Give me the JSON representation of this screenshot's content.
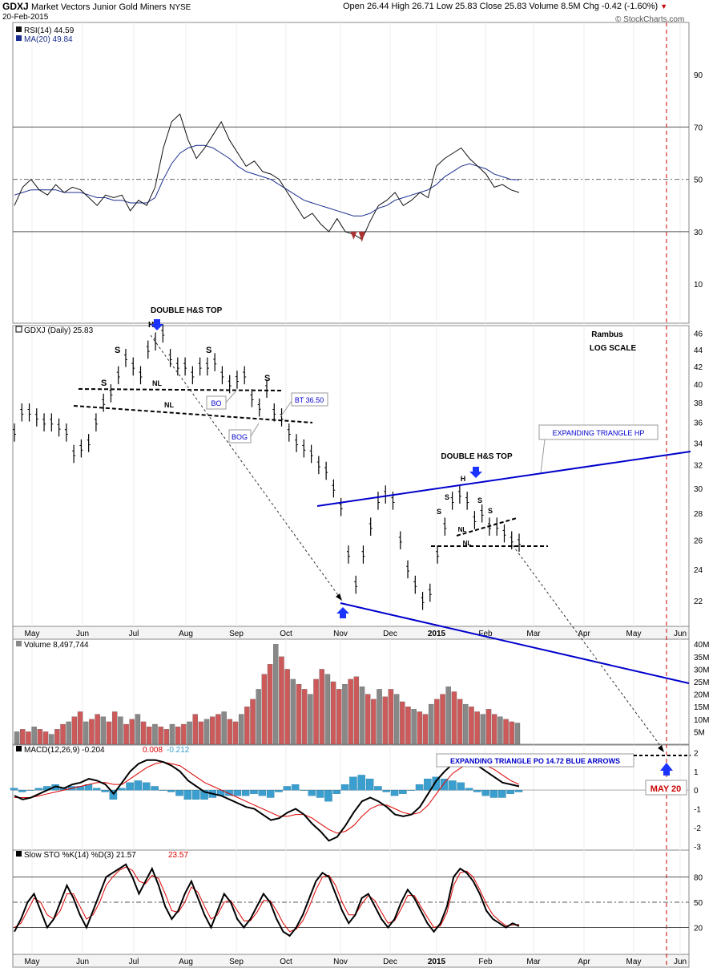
{
  "header": {
    "symbol": "GDXJ",
    "name": "Market Vectors Junior Gold Miners",
    "exchange": "NYSE",
    "date": "20-Feb-2015",
    "ohlc_line": "Open 26.44  High 26.71  Low 25.83  Close 25.83  Volume 8.5M  Chg -0.42 (-1.60%)",
    "watermark": "© StockCharts.com",
    "ohlc_down_icon": "down-triangle-icon"
  },
  "x_axis": {
    "month_labels": [
      "May",
      "Jun",
      "Jul",
      "Aug",
      "Sep",
      "Oct",
      "Nov",
      "Dec",
      "2015",
      "Feb",
      "Mar",
      "Apr",
      "May",
      "Jun"
    ]
  },
  "colors": {
    "price_trendline": "#0000cc",
    "annotation_text": "#0000cc",
    "arrow_blue": "#1a33ff",
    "target_red": "#cc0000",
    "volume_up": "#888888",
    "volume_down": "#cc5a5a",
    "macd_hist": "#3a9fcf",
    "signal_red": "#dd0000"
  },
  "chart_data": [
    {
      "type": "line",
      "panel": "RSI",
      "legend": [
        "RSI(14) 44.59",
        "MA(20) 49.84"
      ],
      "ylim": [
        0,
        100
      ],
      "y_ticks": [
        "90",
        "70",
        "50",
        "30",
        "10"
      ],
      "series": [
        {
          "name": "RSI(14)",
          "values": [
            40,
            47,
            50,
            46,
            44,
            48,
            45,
            47,
            46,
            43,
            40,
            44,
            43,
            44,
            38,
            42,
            40,
            47,
            62,
            72,
            75,
            65,
            58,
            62,
            67,
            72,
            65,
            60,
            55,
            57,
            53,
            52,
            50,
            45,
            40,
            35,
            37,
            33,
            30,
            35,
            30,
            29,
            27,
            34,
            40,
            42,
            45,
            40,
            42,
            45,
            43,
            55,
            58,
            60,
            62,
            58,
            55,
            52,
            47,
            48,
            46,
            45
          ]
        },
        {
          "name": "MA(20)",
          "values": [
            44,
            45,
            46,
            46,
            46,
            46,
            45,
            45,
            45,
            44,
            43,
            43,
            42,
            42,
            41,
            41,
            41,
            43,
            50,
            56,
            60,
            62,
            63,
            63,
            62,
            60,
            58,
            55,
            53,
            52,
            51,
            50,
            48,
            46,
            44,
            42,
            41,
            40,
            39,
            38,
            37,
            36,
            36,
            37,
            39,
            40,
            42,
            43,
            44,
            45,
            46,
            48,
            51,
            53,
            55,
            56,
            55,
            54,
            52,
            51,
            50,
            49.84
          ]
        }
      ],
      "oversold_marks": [
        27,
        26
      ]
    },
    {
      "type": "line",
      "panel": "Price",
      "legend": [
        "GDXJ (Daily) 25.83"
      ],
      "log_scale": true,
      "ylim": [
        20.5,
        47
      ],
      "y_ticks": [
        "46",
        "44",
        "42",
        "40",
        "38",
        "36",
        "34",
        "32",
        "30",
        "28",
        "26",
        "24",
        "22"
      ],
      "series": [
        {
          "name": "GDXJ (Daily)",
          "values": [
            35,
            37,
            37,
            36.5,
            36,
            36,
            35.5,
            35,
            33,
            33.5,
            34,
            36,
            38,
            39,
            41,
            43,
            42,
            41,
            44,
            45,
            46,
            43,
            42,
            42,
            41,
            42,
            42,
            42.5,
            41,
            40,
            40.5,
            41,
            38.5,
            37.5,
            39.5,
            37,
            36.5,
            35,
            34,
            33.5,
            33,
            32,
            31.5,
            30,
            28.5,
            25,
            23,
            25,
            27,
            29,
            29.5,
            29,
            26,
            24,
            23,
            22,
            22.5,
            25,
            27,
            29,
            29.5,
            29,
            27.5,
            28,
            27,
            27,
            26.5,
            26,
            25.83
          ]
        }
      ],
      "annotations": [
        "DOUBLE H&S TOP",
        "H",
        "S",
        "S",
        "S",
        "S",
        "NL",
        "NL",
        "BO",
        "BOG",
        "BT 36.50",
        "Rambus",
        "LOG SCALE",
        "EXPANDING TRIANGLE HP",
        "DOUBLE H&S TOP",
        "H",
        "S",
        "S",
        "S",
        "S",
        "NL",
        "NL"
      ]
    },
    {
      "type": "bar",
      "panel": "Volume",
      "legend": [
        "Volume 8,497,744"
      ],
      "y_ticks": [
        "40M",
        "35M",
        "30M",
        "25M",
        "20M",
        "15M",
        "10M",
        "5M"
      ],
      "ylim": [
        0,
        42
      ],
      "values": [
        5,
        6,
        5,
        7,
        6,
        5,
        4,
        6,
        8,
        9,
        11,
        13,
        9,
        10,
        12,
        11,
        9,
        13,
        11,
        8,
        10,
        12,
        9,
        7,
        8,
        7,
        6,
        8,
        7,
        8,
        9,
        12,
        9,
        10,
        11,
        12,
        13,
        10,
        9,
        12,
        15,
        18,
        22,
        28,
        32,
        40,
        35,
        30,
        26,
        24,
        22,
        20,
        26,
        30,
        28,
        25,
        22,
        24,
        26,
        27,
        23,
        20,
        18,
        22,
        19,
        22,
        20,
        17,
        15,
        14,
        13,
        12,
        16,
        18,
        20,
        23,
        21,
        18,
        16,
        15,
        13,
        12,
        14,
        12,
        11,
        10,
        9,
        8.5
      ]
    },
    {
      "type": "line",
      "panel": "MACD",
      "legend": [
        "MACD(12,26,9) -0.204",
        "0.008",
        "-0.212"
      ],
      "y_ticks": [
        "2",
        "1",
        "0",
        "-1",
        "-2",
        "-3"
      ],
      "ylim": [
        -3.2,
        2.4
      ],
      "series": [
        {
          "name": "MACD(12,26,9)",
          "values": [
            -0.3,
            -0.5,
            -0.4,
            -0.2,
            0,
            0.2,
            0.1,
            0.3,
            0.4,
            0.6,
            0.5,
            0.3,
            -0.2,
            0.4,
            1.0,
            1.4,
            1.6,
            1.6,
            1.5,
            1.3,
            1.0,
            0.5,
            0.2,
            -0.1,
            -0.2,
            -0.3,
            -0.5,
            -0.7,
            -0.9,
            -1.0,
            -1.3,
            -1.6,
            -1.5,
            -1.2,
            -1.0,
            -1.3,
            -1.8,
            -2.2,
            -2.7,
            -2.5,
            -1.9,
            -1.2,
            -0.6,
            -0.4,
            -0.6,
            -0.9,
            -1.3,
            -1.4,
            -1.3,
            -0.9,
            -0.2,
            0.5,
            1.0,
            1.4,
            1.6,
            1.5,
            1.3,
            1.0,
            0.7,
            0.4,
            0.3,
            0.2
          ]
        },
        {
          "name": "Signal",
          "values": [
            -0.4,
            -0.4,
            -0.4,
            -0.3,
            -0.2,
            -0.1,
            0,
            0.1,
            0.2,
            0.3,
            0.4,
            0.4,
            0.3,
            0.3,
            0.6,
            0.9,
            1.2,
            1.4,
            1.5,
            1.4,
            1.3,
            1.0,
            0.7,
            0.4,
            0.2,
            0,
            -0.2,
            -0.4,
            -0.6,
            -0.8,
            -1.0,
            -1.2,
            -1.4,
            -1.4,
            -1.3,
            -1.3,
            -1.5,
            -1.8,
            -2.1,
            -2.3,
            -2.2,
            -1.9,
            -1.4,
            -1.0,
            -0.8,
            -0.8,
            -1.0,
            -1.2,
            -1.3,
            -1.2,
            -0.8,
            -0.2,
            0.4,
            0.9,
            1.2,
            1.4,
            1.4,
            1.3,
            1.1,
            0.8,
            0.5,
            0.3
          ]
        }
      ],
      "histogram": [
        0.1,
        -0.1,
        0,
        0.1,
        0.2,
        0.3,
        0.1,
        0.2,
        0.2,
        0.3,
        0.1,
        -0.1,
        -0.5,
        0.1,
        0.4,
        0.5,
        0.4,
        0.2,
        0,
        -0.1,
        -0.3,
        -0.5,
        -0.5,
        -0.5,
        -0.4,
        -0.3,
        -0.3,
        -0.3,
        -0.3,
        -0.2,
        -0.3,
        -0.4,
        -0.1,
        0.2,
        0.3,
        0,
        -0.3,
        -0.4,
        -0.6,
        -0.2,
        0.3,
        0.7,
        0.8,
        0.6,
        0.2,
        -0.1,
        -0.3,
        -0.2,
        0,
        0.3,
        0.6,
        0.7,
        0.6,
        0.5,
        0.4,
        0.1,
        -0.1,
        -0.3,
        -0.4,
        -0.4,
        -0.2,
        -0.1
      ]
    },
    {
      "type": "line",
      "panel": "Slow STO",
      "legend": [
        "Slow STO %K(14) %D(3) 21.57",
        "23.57"
      ],
      "y_ticks": [
        "80",
        "50",
        "20"
      ],
      "ylim": [
        0,
        100
      ],
      "series": [
        {
          "name": "%K(14)",
          "values": [
            15,
            30,
            50,
            60,
            40,
            20,
            30,
            50,
            70,
            55,
            35,
            20,
            40,
            60,
            80,
            85,
            90,
            95,
            80,
            60,
            75,
            90,
            70,
            45,
            30,
            40,
            60,
            75,
            55,
            35,
            20,
            40,
            60,
            50,
            30,
            20,
            30,
            45,
            60,
            50,
            30,
            15,
            10,
            20,
            35,
            55,
            75,
            85,
            80,
            60,
            40,
            25,
            35,
            55,
            60,
            45,
            30,
            20,
            30,
            50,
            65,
            55,
            40,
            25,
            15,
            25,
            45,
            80,
            90,
            85,
            75,
            60,
            40,
            30,
            25,
            20,
            25,
            21.57
          ]
        },
        {
          "name": "%D(3)",
          "values": [
            20,
            25,
            40,
            55,
            50,
            35,
            30,
            40,
            60,
            60,
            45,
            30,
            35,
            50,
            70,
            80,
            88,
            92,
            88,
            75,
            72,
            82,
            78,
            60,
            40,
            38,
            50,
            68,
            62,
            45,
            30,
            35,
            50,
            52,
            40,
            28,
            28,
            38,
            52,
            52,
            40,
            25,
            15,
            18,
            28,
            45,
            65,
            80,
            82,
            70,
            50,
            35,
            35,
            48,
            58,
            52,
            38,
            25,
            28,
            42,
            58,
            58,
            45,
            32,
            20,
            22,
            38,
            70,
            85,
            87,
            80,
            65,
            48,
            35,
            28,
            22,
            23,
            23.57
          ]
        }
      ]
    }
  ],
  "trendlines": {
    "target_text": "EXPANDING TRIANGLE PO 14.72 BLUE ARROWS",
    "target_date": "MAY 20"
  }
}
